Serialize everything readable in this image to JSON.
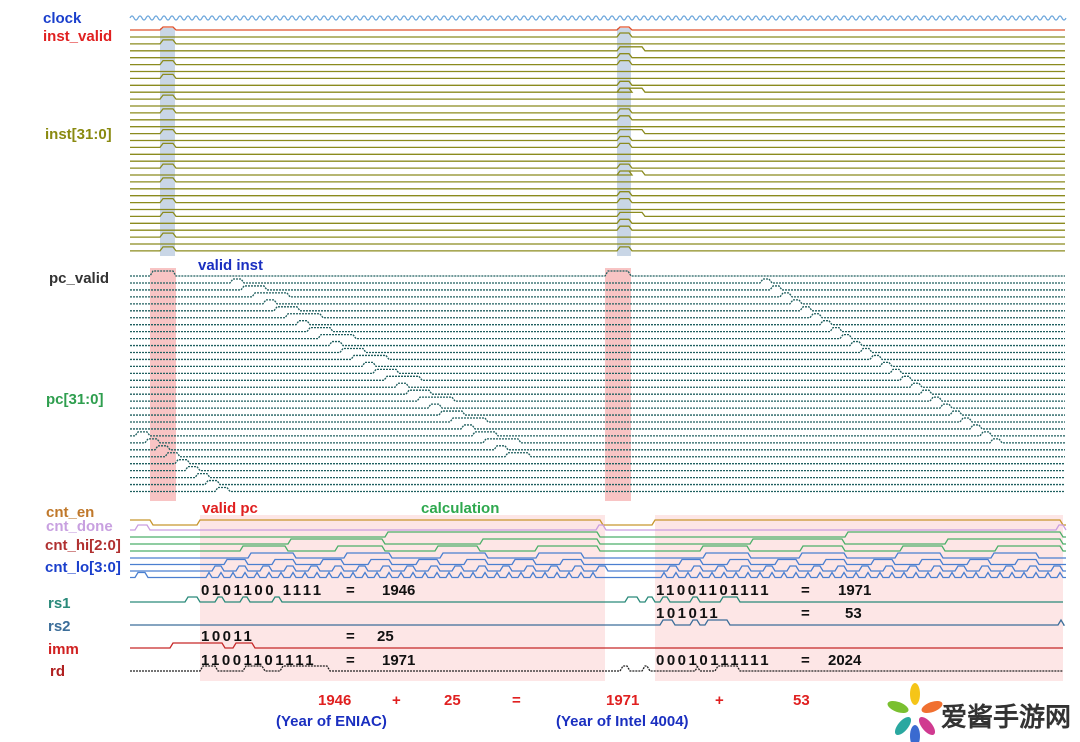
{
  "signals": {
    "clock": "clock",
    "inst_valid": "inst_valid",
    "inst": "inst[31:0]",
    "pc_valid": "pc_valid",
    "pc": "pc[31:0]",
    "cnt_en": "cnt_en",
    "cnt_done": "cnt_done",
    "cnt_hi": "cnt_hi[2:0]",
    "cnt_lo": "cnt_lo[3:0]",
    "rs1": "rs1",
    "rs2": "rs2",
    "imm": "imm",
    "rd": "rd"
  },
  "annotations": {
    "valid_inst": "valid inst",
    "valid_pc": "valid pc",
    "calculation": "calculation"
  },
  "op1": {
    "rs1_bits": "0101100 1111",
    "rs1_eq": "=",
    "rs1_val": "1946",
    "imm_bits": "10011",
    "imm_eq": "=",
    "imm_val": "25",
    "rd_bits": "11001101111",
    "rd_eq": "=",
    "rd_val": "1971"
  },
  "op2": {
    "rs1_bits": "11001101111",
    "rs1_eq": "=",
    "rs1_val": "1971",
    "rs2_bits": "101011",
    "rs2_eq": "=",
    "rs2_val": "53",
    "rd_bits": "00010111111",
    "rd_eq": "=",
    "rd_val": "2024"
  },
  "equation": {
    "a": "1946",
    "plus1": "+",
    "b": "25",
    "equals": "=",
    "c": "1971",
    "plus2": "+",
    "d": "53",
    "note_a": "(Year of ENIAC)",
    "note_c": "(Year of Intel 4004)"
  },
  "watermark": "爱酱手游网",
  "colors": {
    "clock": "#6fa8dc",
    "inst_valid": "#e0502a",
    "inst": "#8b8b1e",
    "pc": "#1f5f5f",
    "cnt_en": "#c8962e",
    "cnt_done": "#c99de0",
    "cnt_hi": "#4caf6a",
    "cnt_lo": "#4a7fd0",
    "rs1": "#2a8a7a",
    "rs2": "#3c6e9a",
    "imm": "#c62828",
    "rd": "#222222",
    "highlight_pink": "#fbe0e0",
    "highlight_blue": "#c9d6e6"
  }
}
